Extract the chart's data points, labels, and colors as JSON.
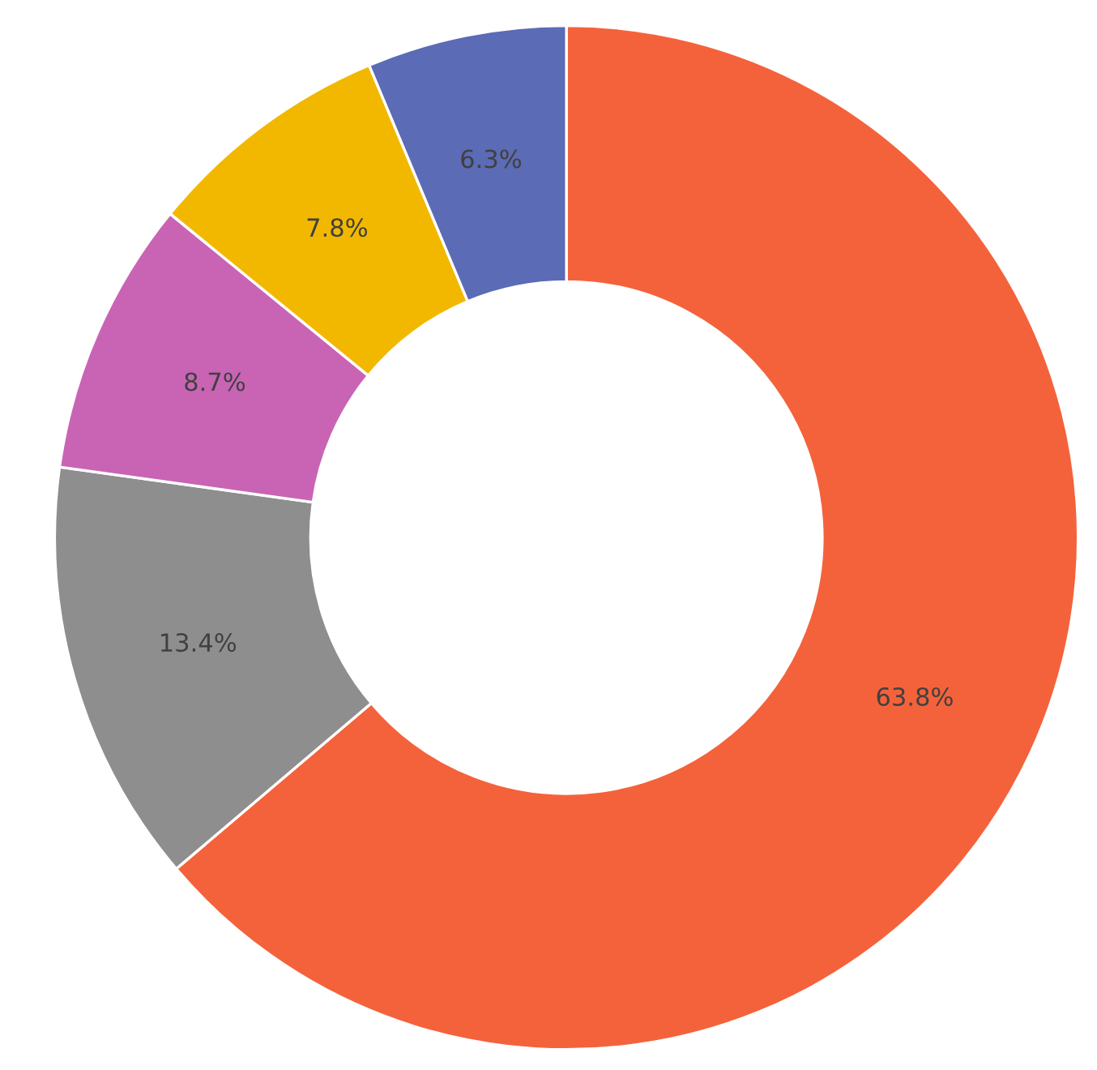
{
  "chart_data": {
    "type": "donut",
    "categories": [
      null,
      null,
      null,
      null,
      null
    ],
    "values": [
      63.8,
      13.4,
      8.7,
      7.8,
      6.3
    ],
    "colors": [
      "#f4623b",
      "#8e8e8e",
      "#c964b5",
      "#f2b800",
      "#5b6bb5"
    ],
    "value_labels": [
      "63.8%",
      "13.4%",
      "8.7%",
      "7.8%",
      "6.3%"
    ],
    "legend": false
  }
}
